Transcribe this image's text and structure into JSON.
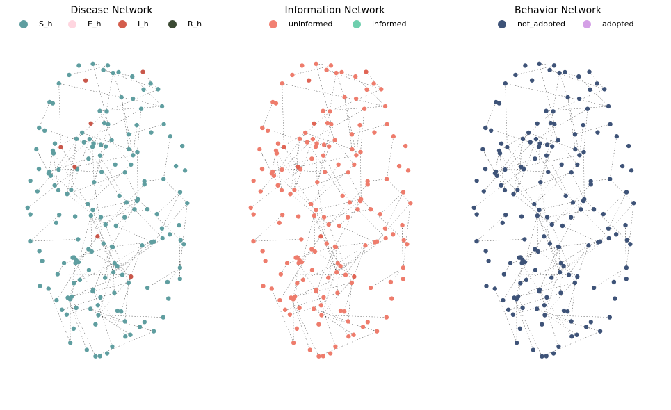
{
  "panels": [
    {
      "title": "Disease Network",
      "legend": [
        {
          "label": "S_h",
          "color": "#5f9ea0"
        },
        {
          "label": "E_h",
          "color": "#ffd6e0"
        },
        {
          "label": "I_h",
          "color": "#d45d4c"
        },
        {
          "label": "R_h",
          "color": "#3b4a33"
        }
      ],
      "node_color": "#5f9ea0",
      "highlight_color": "#c9574a"
    },
    {
      "title": "Information Network",
      "legend": [
        {
          "label": "uninformed",
          "color": "#f28072"
        },
        {
          "label": "informed",
          "color": "#6fcfae"
        }
      ],
      "node_color": "#ee7c6c",
      "highlight_color": "#e06555"
    },
    {
      "title": "Behavior Network",
      "legend": [
        {
          "label": "not_adopted",
          "color": "#3e5378"
        },
        {
          "label": "adopted",
          "color": "#d4a0e6"
        }
      ],
      "node_color": "#3e5378",
      "highlight_color": "#3e5378"
    }
  ]
}
